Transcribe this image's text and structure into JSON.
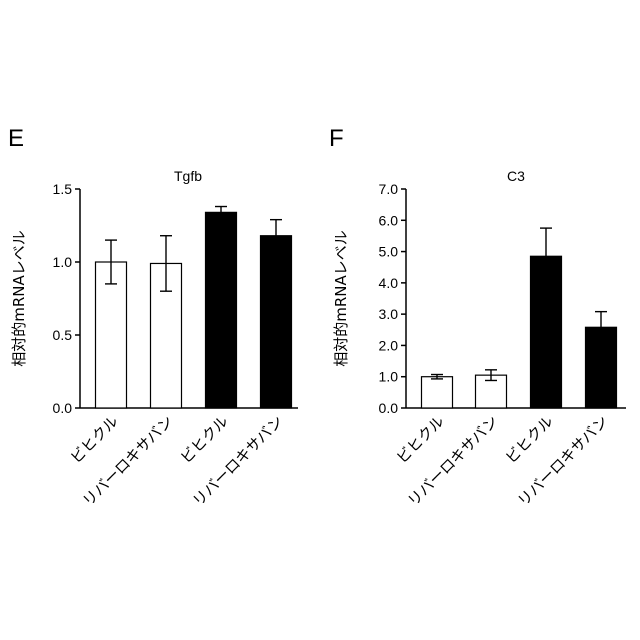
{
  "chart_data": [
    {
      "panel": "E",
      "type": "bar",
      "title": "Tgfb",
      "ylabel": "相対的mRNAレベル",
      "xlabel": "",
      "ylim": [
        0,
        1.5
      ],
      "yticks": [
        "0.0",
        "0.5",
        "1.0",
        "1.5"
      ],
      "categories": [
        "ビヒクル",
        "リバーロキサバン",
        "ビヒクル",
        "リバーロキサバン"
      ],
      "values": [
        1.0,
        0.99,
        1.34,
        1.18
      ],
      "errors": [
        0.15,
        0.19,
        0.04,
        0.11
      ],
      "fills": [
        "#ffffff",
        "#ffffff",
        "#000000",
        "#000000"
      ]
    },
    {
      "panel": "F",
      "type": "bar",
      "title": "C3",
      "ylabel": "相対的mRNAレベル",
      "xlabel": "",
      "ylim": [
        0,
        7.0
      ],
      "yticks": [
        "0.0",
        "1.0",
        "2.0",
        "3.0",
        "4.0",
        "5.0",
        "6.0",
        "7.0"
      ],
      "categories": [
        "ビヒクル",
        "リバーロキサバン",
        "ビヒクル",
        "リバーロキサバン"
      ],
      "values": [
        1.0,
        1.05,
        4.85,
        2.58
      ],
      "errors": [
        0.07,
        0.17,
        0.9,
        0.5
      ],
      "fills": [
        "#ffffff",
        "#ffffff",
        "#000000",
        "#000000"
      ]
    }
  ]
}
